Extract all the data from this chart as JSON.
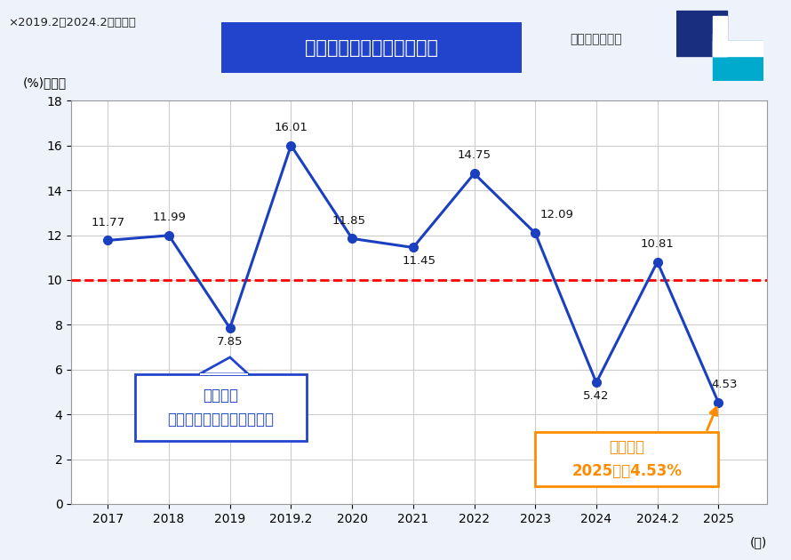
{
  "x_labels": [
    "2017",
    "2018",
    "2019",
    "2019.2",
    "2020",
    "2021",
    "2022",
    "2023",
    "2024",
    "2024.2",
    "2025"
  ],
  "y_values": [
    11.77,
    11.99,
    7.85,
    16.01,
    11.85,
    11.45,
    14.75,
    12.09,
    5.42,
    10.81,
    4.53
  ],
  "x_positions": [
    0,
    1,
    2,
    3,
    4,
    5,
    6,
    7,
    8,
    9,
    10
  ],
  "line_color": "#1a3fbf",
  "marker_color": "#1a3fbf",
  "reference_line_y": 10,
  "reference_line_color": "#ff0000",
  "ylim": [
    0,
    18
  ],
  "yticks": [
    0,
    2,
    4,
    6,
    8,
    10,
    12,
    14,
    16,
    18
  ],
  "title": "塾生代表選の投票率の推移",
  "ylabel": "(%)投票率",
  "xlabel": "(年)",
  "footnote": "×2019.2、2024.2は再選挙",
  "credit": "塾生新聞会作成",
  "background_color": "#eef2fa",
  "plot_background_color": "#ffffff",
  "grid_color": "#cccccc",
  "title_bg_color": "#2244cc",
  "title_text_color": "#ffffff",
  "annotation1_text": "初導入の\n電子投票システムの不具合",
  "annotation1_box_color": "#ffffff",
  "annotation1_border_color": "#2244cc",
  "annotation1_text_color": "#2244cc",
  "annotation2_text": "過去最低\n2025年度4.53%",
  "annotation2_box_color": "#ffffff",
  "annotation2_border_color": "#ff8c00",
  "annotation2_text_color": "#ff8c00",
  "data_label_color": "#111111",
  "data_label_fontsize": 9.5,
  "line_width": 2.2,
  "marker_size": 7,
  "logo_dark": "#1a2e80",
  "logo_light": "#00aacc",
  "logo_white": "#ffffff"
}
